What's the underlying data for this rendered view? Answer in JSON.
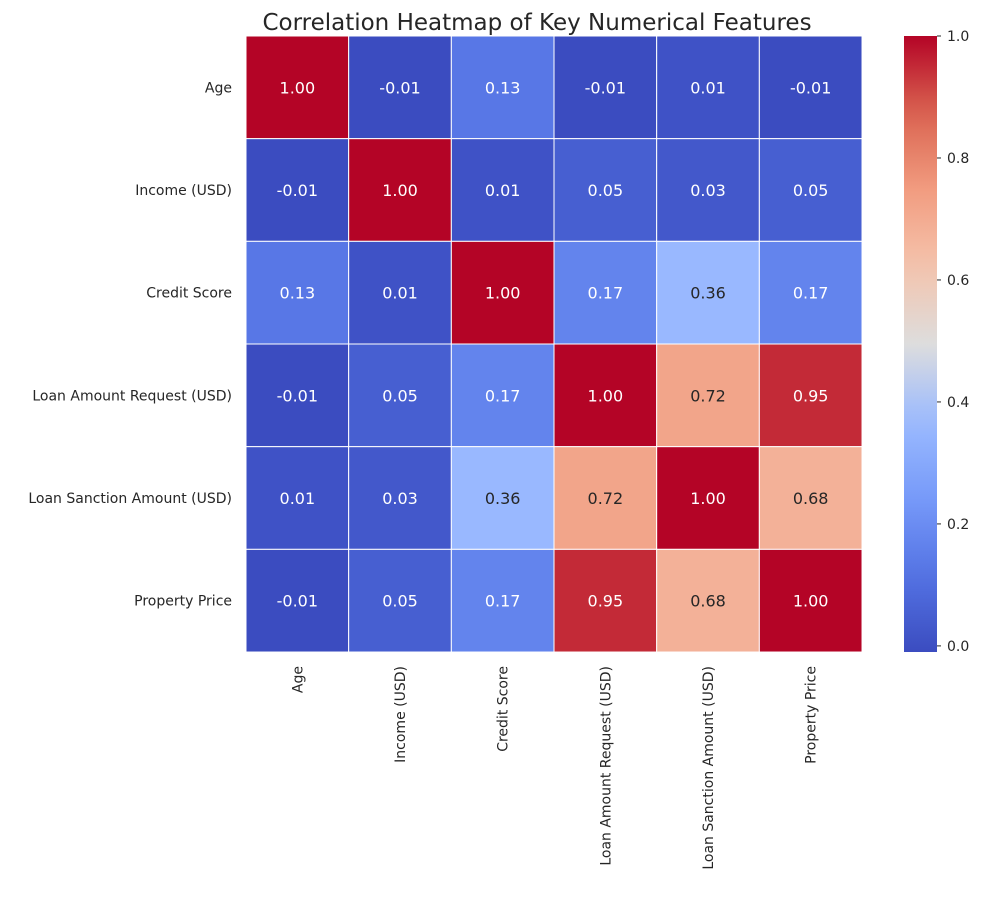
{
  "chart_data": {
    "type": "heatmap",
    "title": "Correlation Heatmap of Key Numerical Features",
    "x_labels": [
      "Age",
      "Income (USD)",
      "Credit Score",
      "Loan Amount Request (USD)",
      "Loan Sanction Amount (USD)",
      "Property Price"
    ],
    "y_labels": [
      "Age",
      "Income (USD)",
      "Credit Score",
      "Loan Amount Request (USD)",
      "Loan Sanction Amount (USD)",
      "Property Price"
    ],
    "values": [
      [
        1.0,
        -0.01,
        0.13,
        -0.01,
        0.01,
        -0.01
      ],
      [
        -0.01,
        1.0,
        0.01,
        0.05,
        0.03,
        0.05
      ],
      [
        0.13,
        0.01,
        1.0,
        0.17,
        0.36,
        0.17
      ],
      [
        -0.01,
        0.05,
        0.17,
        1.0,
        0.72,
        0.95
      ],
      [
        0.01,
        0.03,
        0.36,
        0.72,
        1.0,
        0.68
      ],
      [
        -0.01,
        0.05,
        0.17,
        0.95,
        0.68,
        1.0
      ]
    ],
    "value_format": "0.00",
    "colormap": "coolwarm",
    "colorbar": {
      "range": [
        -0.01,
        1.0
      ],
      "ticks": [
        0.0,
        0.2,
        0.4,
        0.6,
        0.8,
        1.0
      ],
      "tick_labels": [
        "0.0",
        "0.2",
        "0.4",
        "0.6",
        "0.8",
        "1.0"
      ],
      "low_color": "#3b4cc0",
      "high_color": "#b40426"
    },
    "grid_line_color": "#ffffff",
    "legend_placement": "right"
  }
}
